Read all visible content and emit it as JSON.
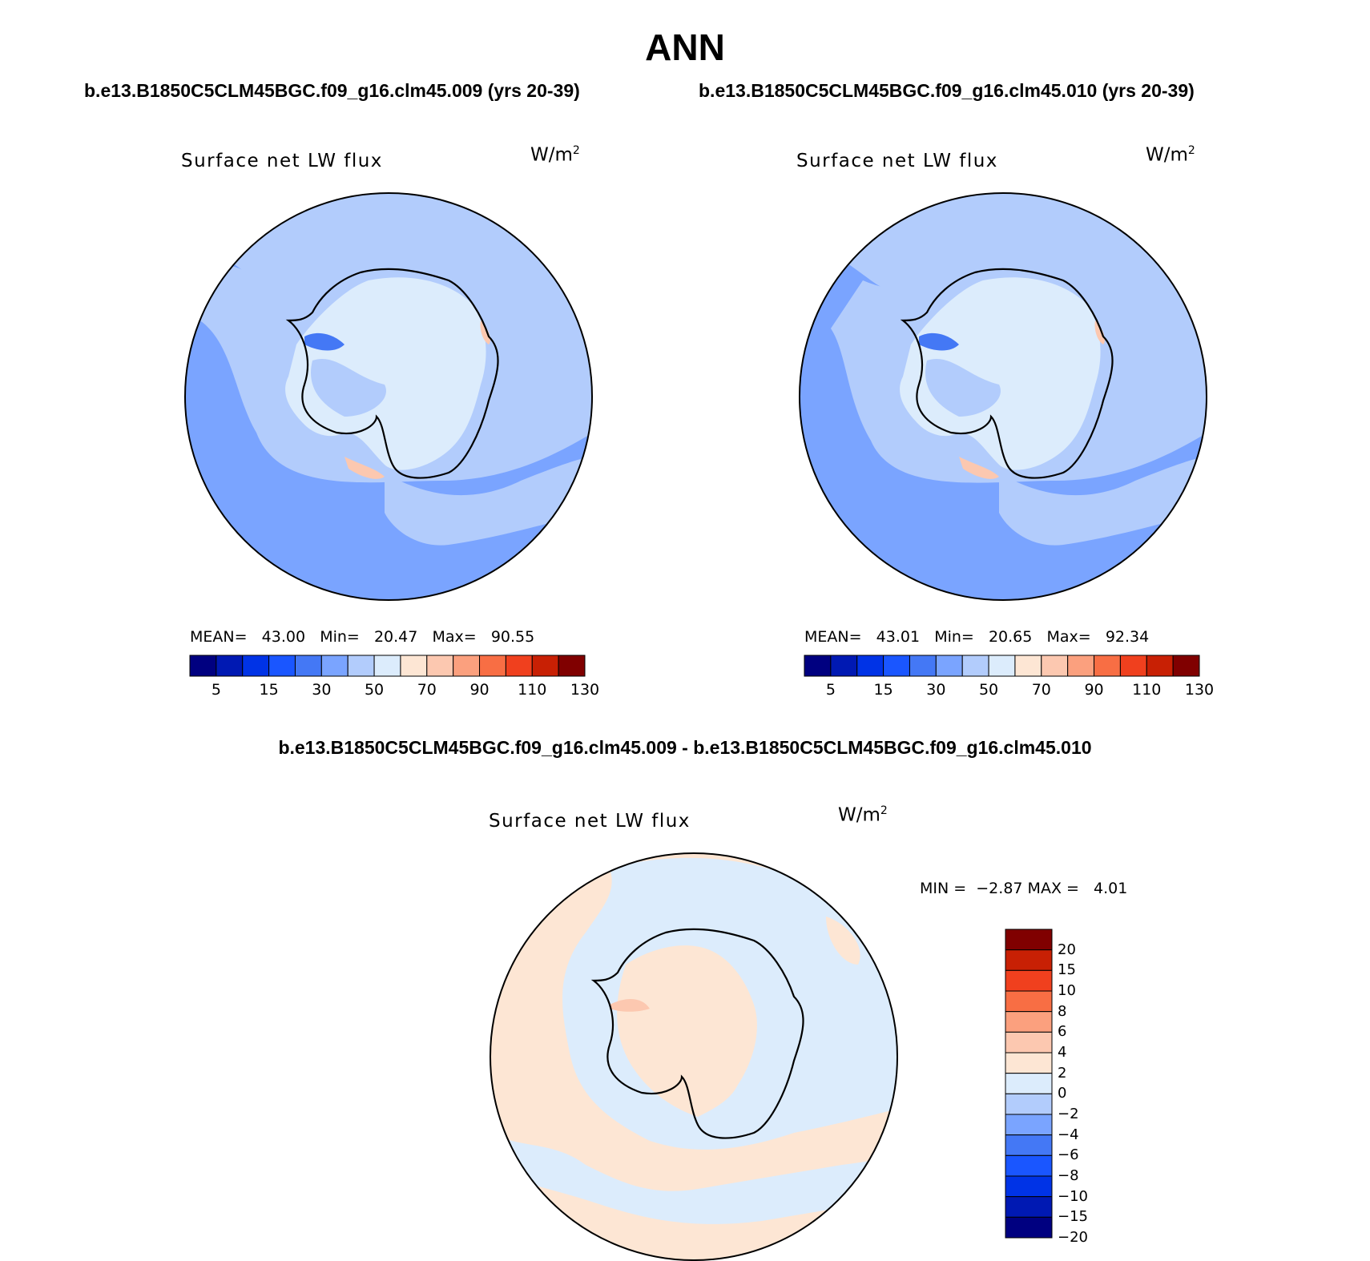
{
  "title": "ANN",
  "left_subtitle": "b.e13.B1850C5CLM45BGC.f09_g16.clm45.009 (yrs 20-39)",
  "right_subtitle": "b.e13.B1850C5CLM45BGC.f09_g16.clm45.010 (yrs 20-39)",
  "diff_subtitle": "b.e13.B1850C5CLM45BGC.f09_g16.clm45.009 - b.e13.B1850C5CLM45BGC.f09_g16.clm45.010",
  "variable": "Surface net LW flux",
  "units_base": "W/m",
  "units_exp": "2",
  "left_panel": {
    "mean_label": "MEAN=",
    "mean": "43.00",
    "min_label": "Min=",
    "min": "20.47",
    "max_label": "Max=",
    "max": "90.55"
  },
  "right_panel": {
    "mean_label": "MEAN=",
    "mean": "43.01",
    "min_label": "Min=",
    "min": "20.65",
    "max_label": "Max=",
    "max": "92.34"
  },
  "diff_panel": {
    "min_label": "MIN =",
    "min": "−2.87",
    "max_label": "MAX =",
    "max": "4.01"
  },
  "colors": {
    "abs_scale": [
      "#000080",
      "#0019b3",
      "#0033e6",
      "#1a56ff",
      "#4478f5",
      "#7aa4ff",
      "#b2ccfc",
      "#dcecfc",
      "#fde6d4",
      "#fcc8b0",
      "#fba07e",
      "#f86e44",
      "#f0401e",
      "#c82004",
      "#800000"
    ],
    "diff_scale": [
      "#000080",
      "#0019b3",
      "#0033e6",
      "#1a56ff",
      "#4478f5",
      "#7aa4ff",
      "#b2ccfc",
      "#dcecfc",
      "#fde6d4",
      "#fcc8b0",
      "#fba07e",
      "#f86e44",
      "#f0401e",
      "#c82004",
      "#800000"
    ],
    "coast": "#000000"
  },
  "abs_ticks": [
    "5",
    "15",
    "30",
    "50",
    "70",
    "90",
    "110",
    "130"
  ],
  "diff_ticks": [
    "20",
    "15",
    "10",
    "8",
    "6",
    "4",
    "2",
    "0",
    "−2",
    "−4",
    "−6",
    "−8",
    "−10",
    "−15",
    "−20"
  ]
}
